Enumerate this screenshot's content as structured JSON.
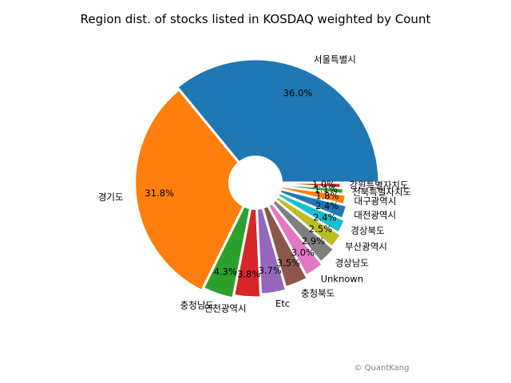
{
  "chart_data": {
    "type": "pie",
    "title": "Region dist. of stocks listed in KOSDAQ weighted by Count",
    "watermark": "© QuantKang",
    "slices": [
      {
        "label": "서울특별시",
        "value": 36.0,
        "pct_text": "36.0%",
        "color": "#1f77b4"
      },
      {
        "label": "경기도",
        "value": 31.8,
        "pct_text": "31.8%",
        "color": "#ff7f0e"
      },
      {
        "label": "충청남도",
        "value": 4.3,
        "pct_text": "4.3%",
        "color": "#2ca02c"
      },
      {
        "label": "인천광역시",
        "value": 3.8,
        "pct_text": "3.8%",
        "color": "#d62728"
      },
      {
        "label": "Etc",
        "value": 3.7,
        "pct_text": "3.7%",
        "color": "#9467bd"
      },
      {
        "label": "충청북도",
        "value": 3.5,
        "pct_text": "3.5%",
        "color": "#8c564b"
      },
      {
        "label": "Unknown",
        "value": 3.0,
        "pct_text": "3.0%",
        "color": "#e377c2"
      },
      {
        "label": "경상남도",
        "value": 2.9,
        "pct_text": "2.9%",
        "color": "#7f7f7f"
      },
      {
        "label": "부산광역시",
        "value": 2.5,
        "pct_text": "2.5%",
        "color": "#bcbd22"
      },
      {
        "label": "경상북도",
        "value": 2.4,
        "pct_text": "2.4%",
        "color": "#17becf"
      },
      {
        "label": "대전광역시",
        "value": 2.4,
        "pct_text": "2.4%",
        "color": "#1f77b4"
      },
      {
        "label": "대구광역시",
        "value": 1.8,
        "pct_text": "1.8%",
        "color": "#ff7f0e"
      },
      {
        "label": "전북특별자치도",
        "value": 1.1,
        "pct_text": "1.1%",
        "color": "#2ca02c"
      },
      {
        "label": "강원특별자치도",
        "value": 1.0,
        "pct_text": "1.0%",
        "color": "#d62728"
      }
    ]
  }
}
